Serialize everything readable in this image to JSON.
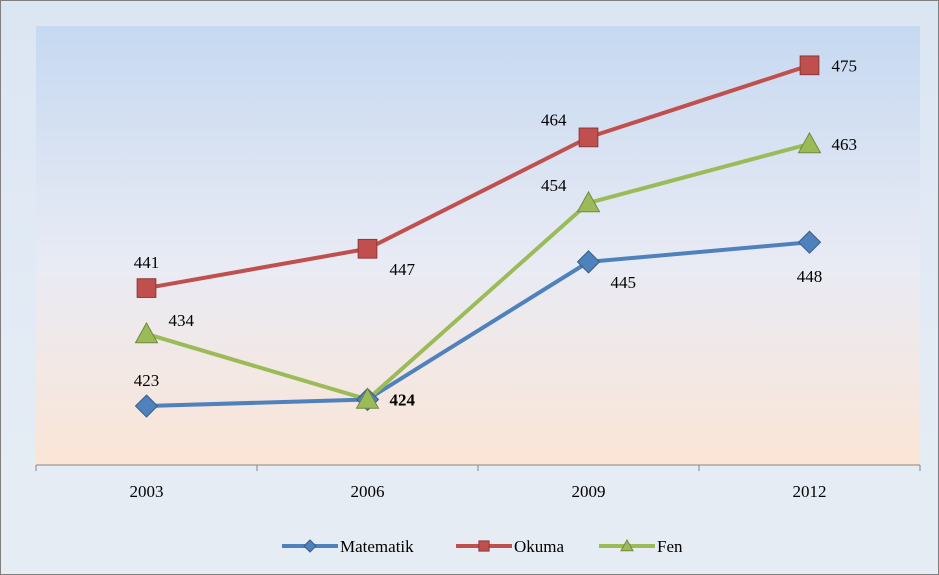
{
  "chart_data": {
    "type": "line",
    "title": "",
    "xlabel": "",
    "ylabel": "",
    "categories": [
      "2003",
      "2006",
      "2009",
      "2012"
    ],
    "ylim": [
      414,
      481
    ],
    "grid": false,
    "legend_position": "bottom",
    "series": [
      {
        "name": "Matematik",
        "values": [
          423,
          424,
          445,
          448
        ],
        "labels": [
          "423",
          "424",
          "445",
          "448"
        ],
        "bold_labels": [
          false,
          true,
          false,
          false
        ],
        "label_positions": [
          "above",
          "right",
          "right-below",
          "below"
        ],
        "marker": "diamond",
        "color": "#4f81bd"
      },
      {
        "name": "Okuma",
        "values": [
          441,
          447,
          464,
          475
        ],
        "labels": [
          "441",
          "447",
          "464",
          "475"
        ],
        "bold_labels": [
          false,
          false,
          false,
          false
        ],
        "label_positions": [
          "above",
          "right-below",
          "above-left",
          "right"
        ],
        "marker": "square",
        "color": "#c0504d"
      },
      {
        "name": "Fen",
        "values": [
          434,
          424,
          454,
          463
        ],
        "labels": [
          "434",
          "",
          "454",
          "463"
        ],
        "bold_labels": [
          false,
          false,
          false,
          false
        ],
        "label_positions": [
          "right-above",
          "none",
          "above-left",
          "right"
        ],
        "marker": "triangle",
        "color": "#9bbb59"
      }
    ]
  }
}
